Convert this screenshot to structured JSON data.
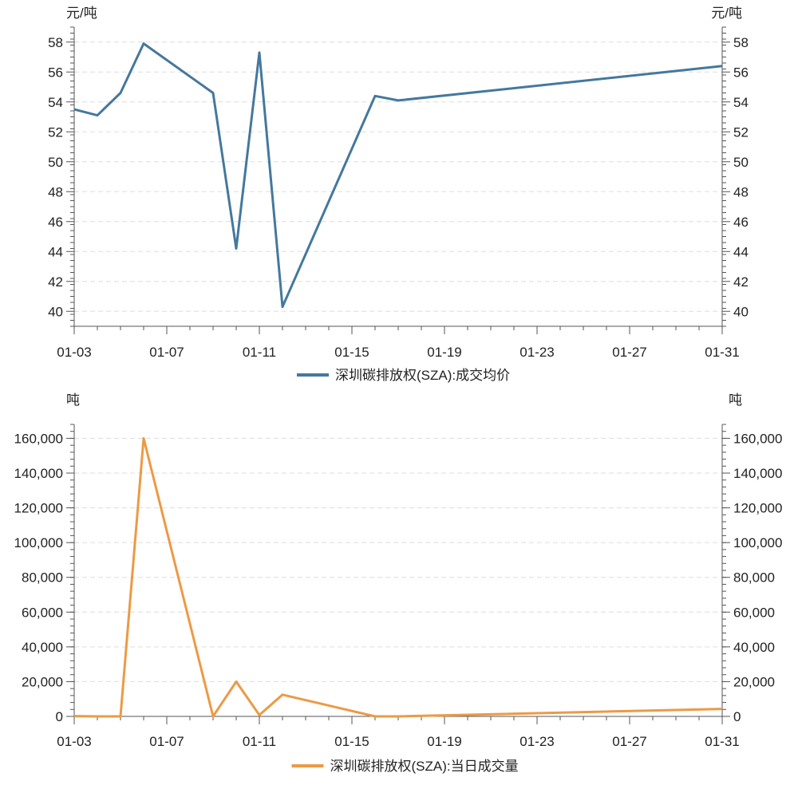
{
  "colors": {
    "price": "#44789e",
    "volume": "#ec9a45",
    "axis": "#555555",
    "grid": "#dddddd"
  },
  "chart_data": [
    {
      "type": "line",
      "unit_left": "元/吨",
      "unit_right": "元/吨",
      "x_ticks": [
        "01-03",
        "01-07",
        "01-11",
        "01-15",
        "01-19",
        "01-23",
        "01-27",
        "01-31"
      ],
      "xlim": [
        "01-03",
        "01-31"
      ],
      "ylim": [
        39,
        59
      ],
      "y_ticks": [
        40,
        42,
        44,
        46,
        48,
        50,
        52,
        54,
        56,
        58
      ],
      "grid": true,
      "legend": "bottom-center",
      "series": [
        {
          "name": "深圳碳排放权(SZA):成交均价",
          "x": [
            "01-03",
            "01-04",
            "01-05",
            "01-06",
            "01-09",
            "01-10",
            "01-11",
            "01-12",
            "01-16",
            "01-17",
            "01-31"
          ],
          "values": [
            53.5,
            53.1,
            54.6,
            57.9,
            54.6,
            44.2,
            57.3,
            40.3,
            54.4,
            54.1,
            56.4
          ]
        }
      ]
    },
    {
      "type": "line",
      "unit_left": "吨",
      "unit_right": "吨",
      "x_ticks": [
        "01-03",
        "01-07",
        "01-11",
        "01-15",
        "01-19",
        "01-23",
        "01-27",
        "01-31"
      ],
      "xlim": [
        "01-03",
        "01-31"
      ],
      "ylim": [
        0,
        168000
      ],
      "y_ticks": [
        0,
        20000,
        40000,
        60000,
        80000,
        100000,
        120000,
        140000,
        160000
      ],
      "grid": true,
      "legend": "bottom-center",
      "series": [
        {
          "name": "深圳碳排放权(SZA):当日成交量",
          "x": [
            "01-03",
            "01-04",
            "01-05",
            "01-06",
            "01-09",
            "01-10",
            "01-11",
            "01-12",
            "01-16",
            "01-17",
            "01-31"
          ],
          "values": [
            200,
            0,
            0,
            160000,
            0,
            20000,
            800,
            12500,
            0,
            0,
            4300
          ]
        }
      ]
    }
  ]
}
